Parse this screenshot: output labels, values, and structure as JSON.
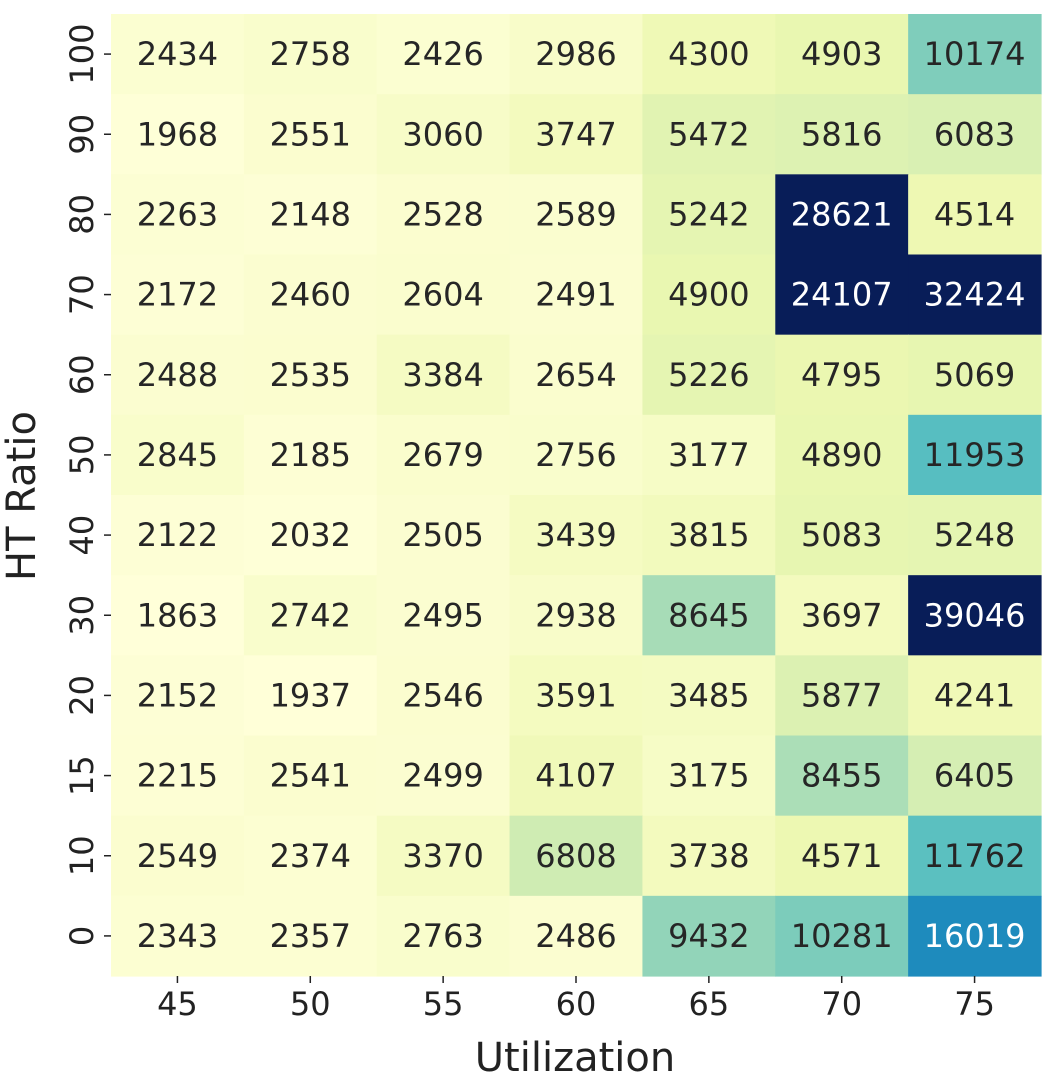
{
  "chart_data": {
    "type": "heatmap",
    "title": "",
    "xlabel": "Utilization",
    "ylabel": "HT Ratio",
    "x_categories": [
      "45",
      "50",
      "55",
      "60",
      "65",
      "70",
      "75"
    ],
    "y_categories": [
      "100",
      "90",
      "80",
      "70",
      "60",
      "50",
      "40",
      "30",
      "20",
      "15",
      "10",
      "0"
    ],
    "values": [
      [
        2434,
        2758,
        2426,
        2986,
        4300,
        4903,
        10174
      ],
      [
        1968,
        2551,
        3060,
        3747,
        5472,
        5816,
        6083
      ],
      [
        2263,
        2148,
        2528,
        2589,
        5242,
        28621,
        4514
      ],
      [
        2172,
        2460,
        2604,
        2491,
        4900,
        24107,
        32424
      ],
      [
        2488,
        2535,
        3384,
        2654,
        5226,
        4795,
        5069
      ],
      [
        2845,
        2185,
        2679,
        2756,
        3177,
        4890,
        11953
      ],
      [
        2122,
        2032,
        2505,
        3439,
        3815,
        5083,
        5248
      ],
      [
        1863,
        2742,
        2495,
        2938,
        8645,
        3697,
        39046
      ],
      [
        2152,
        1937,
        2546,
        3591,
        3485,
        5877,
        4241
      ],
      [
        2215,
        2541,
        2499,
        4107,
        3175,
        8455,
        6405
      ],
      [
        2549,
        2374,
        3370,
        6808,
        3738,
        4571,
        11762
      ],
      [
        2343,
        2357,
        2763,
        2486,
        9432,
        10281,
        16019
      ]
    ],
    "colormap": "YlGnBu",
    "color_scale_max": 24000,
    "colorbar": false,
    "annotate_cells": true,
    "grid": false,
    "legend": "none"
  }
}
